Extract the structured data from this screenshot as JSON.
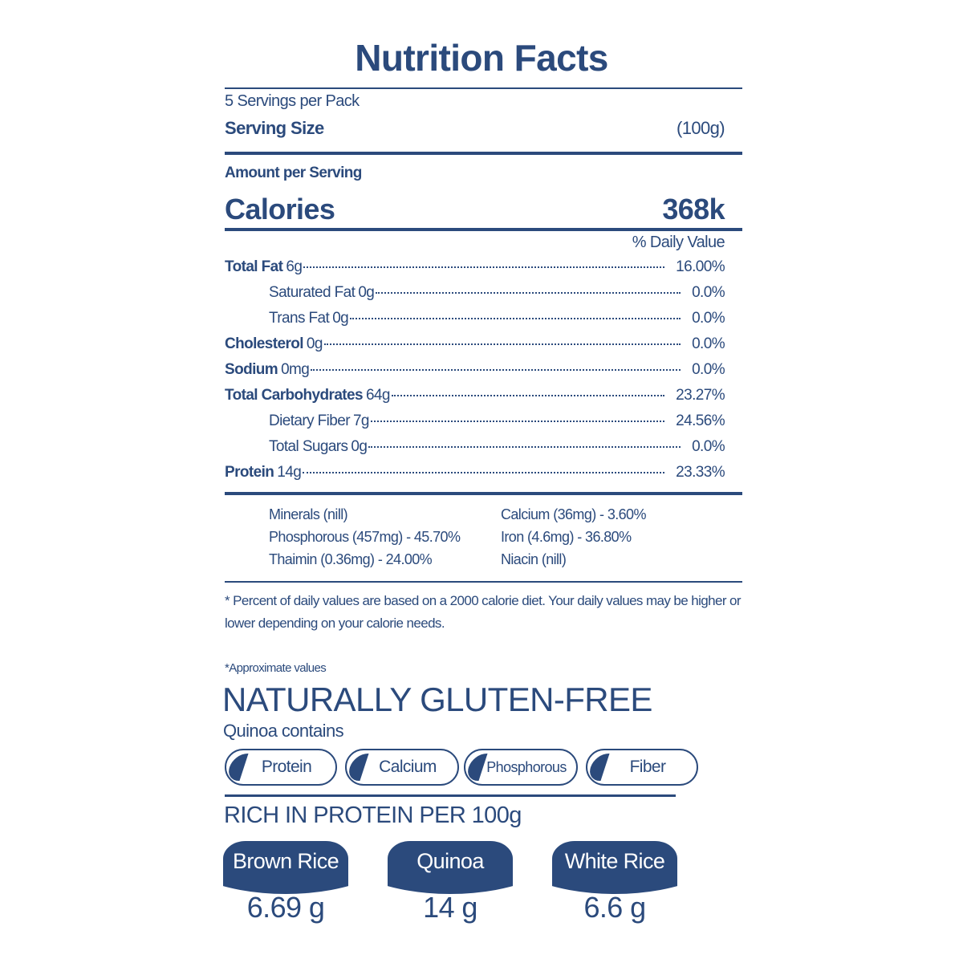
{
  "header": {
    "title": "Nutrition Facts",
    "servings": "5 Servings per Pack",
    "serving_size_label": "Serving Size",
    "serving_size": "(100g)"
  },
  "calories": {
    "amount_label": "Amount per Serving",
    "label": "Calories",
    "value": "368k"
  },
  "daily_value_header": "% Daily Value",
  "nutrients": [
    {
      "name": "Total Fat",
      "amount": "6g",
      "dv": "16.00%",
      "bold": true
    },
    {
      "name": "Saturated Fat",
      "amount": "0g",
      "dv": "0.0%",
      "bold": false
    },
    {
      "name": "Trans Fat",
      "amount": "0g",
      "dv": "0.0%",
      "bold": false
    },
    {
      "name": "Cholesterol",
      "amount": "0g",
      "dv": "0.0%",
      "bold": true
    },
    {
      "name": "Sodium",
      "amount": "0mg",
      "dv": "0.0%",
      "bold": true
    },
    {
      "name": "Total Carbohydrates",
      "amount": "64g",
      "dv": "23.27%",
      "bold": true
    },
    {
      "name": "Dietary Fiber",
      "amount": "7g",
      "dv": "24.56%",
      "bold": false
    },
    {
      "name": "Total Sugars",
      "amount": "0g",
      "dv": "0.0%",
      "bold": false
    },
    {
      "name": "Protein",
      "amount": "14g",
      "dv": "23.33%",
      "bold": true
    }
  ],
  "minerals": [
    [
      "Minerals (nill)",
      "Calcium (36mg) - 3.60%"
    ],
    [
      "Phosphorous (457mg) - 45.70%",
      "Iron (4.6mg) - 36.80%"
    ],
    [
      "Thaimin (0.36mg) - 24.00%",
      "Niacin (nill)"
    ]
  ],
  "footnote": "* Percent of daily values are based on a 2000 calorie diet. Your daily values may be higher or lower depending on your calorie needs.",
  "approx": "*Approximate values",
  "gluten": {
    "title": "NATURALLY GLUTEN-FREE",
    "subtitle": "Quinoa contains",
    "items": [
      "Protein",
      "Calcium",
      "Phosphorous",
      "Fiber"
    ]
  },
  "protein": {
    "title": "RICH IN PROTEIN PER 100g",
    "items": [
      {
        "name": "Brown Rice",
        "value": "6.69 g"
      },
      {
        "name": "Quinoa",
        "value": "14 g"
      },
      {
        "name": "White Rice",
        "value": "6.6 g"
      }
    ]
  }
}
